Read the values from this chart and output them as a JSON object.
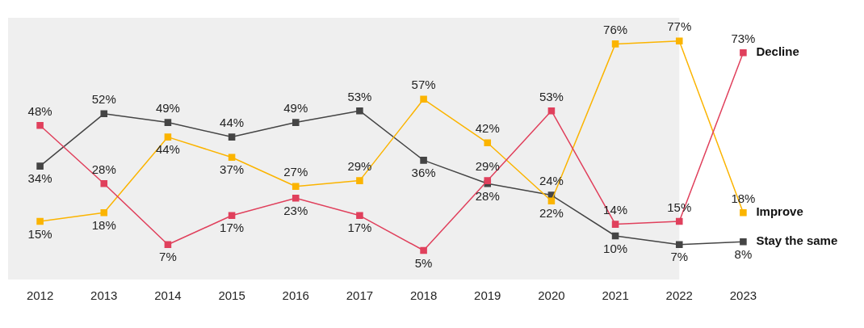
{
  "chart_data": {
    "type": "line",
    "categories": [
      "2012",
      "2013",
      "2014",
      "2015",
      "2016",
      "2017",
      "2018",
      "2019",
      "2020",
      "2021",
      "2022",
      "2023"
    ],
    "series": [
      {
        "name": "Decline",
        "color": "#e0405c",
        "values": [
          48,
          28,
          7,
          17,
          23,
          17,
          5,
          29,
          53,
          14,
          15,
          73
        ],
        "value_labels": [
          "48%",
          "28%",
          "7%",
          "17%",
          "23%",
          "17%",
          "5%",
          "29%",
          "53%",
          "14%",
          "15%",
          "73%"
        ]
      },
      {
        "name": "Improve",
        "color": "#fbb400",
        "values": [
          15,
          18,
          44,
          37,
          27,
          29,
          57,
          42,
          22,
          76,
          77,
          18
        ],
        "value_labels": [
          "15%",
          "18%",
          "44%",
          "37%",
          "27%",
          "29%",
          "57%",
          "42%",
          "22%",
          "76%",
          "77%",
          "18%"
        ]
      },
      {
        "name": "Stay the same",
        "color": "#454545",
        "values": [
          34,
          52,
          49,
          44,
          49,
          53,
          36,
          28,
          24,
          10,
          7,
          8
        ],
        "value_labels": [
          "34%",
          "52%",
          "49%",
          "44%",
          "49%",
          "53%",
          "36%",
          "28%",
          "24%",
          "10%",
          "7%",
          "8%"
        ]
      }
    ],
    "bands": [
      {
        "axis": "x",
        "from": "2012",
        "to": "2022",
        "color": "#efefef"
      }
    ],
    "marker": "square",
    "grid": false,
    "legend": false
  }
}
